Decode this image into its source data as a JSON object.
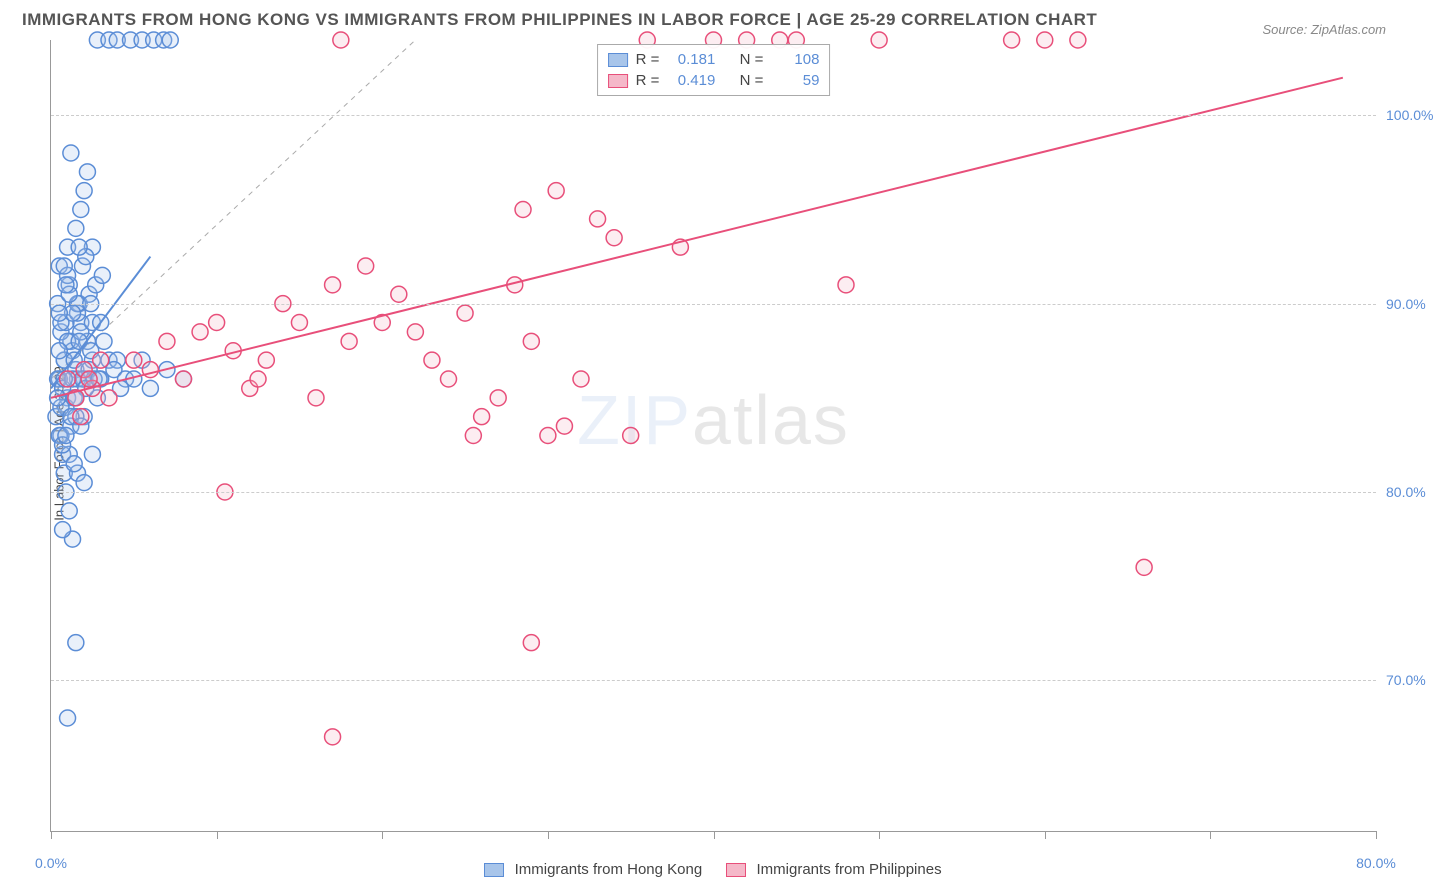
{
  "title": "IMMIGRANTS FROM HONG KONG VS IMMIGRANTS FROM PHILIPPINES IN LABOR FORCE | AGE 25-29 CORRELATION CHART",
  "source": "Source: ZipAtlas.com",
  "y_axis_label": "In Labor Force | Age 25-29",
  "watermark_a": "ZIP",
  "watermark_b": "atlas",
  "chart": {
    "type": "scatter-correlation",
    "background_color": "#ffffff",
    "grid_color": "#cccccc",
    "axis_color": "#999999",
    "text_color": "#555555",
    "value_color": "#5b8dd6",
    "title_fontsize": 17,
    "label_fontsize": 13,
    "tick_fontsize": 14,
    "xlim": [
      0,
      80
    ],
    "ylim": [
      62,
      104
    ],
    "y_ticks": [
      70,
      80,
      90,
      100
    ],
    "y_tick_labels": [
      "70.0%",
      "80.0%",
      "90.0%",
      "100.0%"
    ],
    "x_ticks": [
      0,
      10,
      20,
      30,
      40,
      50,
      60,
      70,
      80
    ],
    "x_tick_labels": [
      "0.0%",
      "",
      "",
      "",
      "",
      "",
      "",
      "",
      "80.0%"
    ],
    "marker_radius": 8,
    "marker_stroke_width": 1.5,
    "marker_fill_opacity": 0.25,
    "line_width": 2,
    "dashed_line": {
      "x1": 0,
      "y1": 86,
      "x2": 22,
      "y2": 104,
      "stroke": "#aaaaaa",
      "dash": "5,5",
      "width": 1
    }
  },
  "series": [
    {
      "name": "Immigrants from Hong Kong",
      "key": "hongkong",
      "color_stroke": "#5b8dd6",
      "color_fill": "#a8c5ea",
      "R": "0.181",
      "N": "108",
      "regression": {
        "x1": 0,
        "y1": 85.5,
        "x2": 6,
        "y2": 92.5
      },
      "points": [
        [
          0.5,
          86
        ],
        [
          0.8,
          87
        ],
        [
          1.0,
          85
        ],
        [
          1.2,
          88
        ],
        [
          0.3,
          84
        ],
        [
          1.5,
          86.5
        ],
        [
          0.6,
          83
        ],
        [
          1.8,
          89
        ],
        [
          2.0,
          86
        ],
        [
          0.4,
          90
        ],
        [
          1.1,
          91
        ],
        [
          0.7,
          82
        ],
        [
          1.3,
          87.5
        ],
        [
          2.2,
          88
        ],
        [
          0.9,
          84.5
        ],
        [
          1.6,
          86
        ],
        [
          0.5,
          92
        ],
        [
          1.0,
          93
        ],
        [
          1.4,
          85
        ],
        [
          2.5,
          87
        ],
        [
          0.8,
          81
        ],
        [
          1.2,
          83.5
        ],
        [
          3.0,
          86
        ],
        [
          0.6,
          88.5
        ],
        [
          1.7,
          90
        ],
        [
          2.0,
          84
        ],
        [
          0.4,
          86
        ],
        [
          1.1,
          82
        ],
        [
          3.5,
          87
        ],
        [
          0.9,
          89
        ],
        [
          1.5,
          84
        ],
        [
          2.3,
          86.5
        ],
        [
          0.7,
          85.5
        ],
        [
          1.8,
          88.5
        ],
        [
          4.0,
          87
        ],
        [
          0.5,
          83
        ],
        [
          1.3,
          86
        ],
        [
          2.8,
          85
        ],
        [
          0.8,
          87
        ],
        [
          1.6,
          89.5
        ],
        [
          3.2,
          88
        ],
        [
          0.6,
          84.5
        ],
        [
          1.9,
          86
        ],
        [
          2.5,
          89
        ],
        [
          0.4,
          85
        ],
        [
          1.0,
          88
        ],
        [
          3.8,
          86.5
        ],
        [
          0.7,
          82.5
        ],
        [
          1.4,
          87
        ],
        [
          2.1,
          85.5
        ],
        [
          4.5,
          86
        ],
        [
          0.9,
          83
        ],
        [
          1.7,
          88
        ],
        [
          2.6,
          86
        ],
        [
          0.5,
          87.5
        ],
        [
          1.2,
          84
        ],
        [
          3.0,
          89
        ],
        [
          0.8,
          86
        ],
        [
          1.5,
          85
        ],
        [
          2.4,
          87.5
        ],
        [
          4.2,
          85.5
        ],
        [
          0.6,
          89
        ],
        [
          1.8,
          83.5
        ],
        [
          2.9,
          86
        ],
        [
          1.3,
          77.5
        ],
        [
          0.9,
          80
        ],
        [
          1.6,
          81
        ],
        [
          2.0,
          80.5
        ],
        [
          1.1,
          79
        ],
        [
          2.5,
          82
        ],
        [
          0.7,
          78
        ],
        [
          1.4,
          81.5
        ],
        [
          1.0,
          68
        ],
        [
          2.8,
          104
        ],
        [
          3.5,
          104
        ],
        [
          4.0,
          104
        ],
        [
          4.8,
          104
        ],
        [
          5.5,
          104
        ],
        [
          6.2,
          104
        ],
        [
          6.8,
          104
        ],
        [
          7.2,
          104
        ],
        [
          1.8,
          95
        ],
        [
          2.2,
          97
        ],
        [
          1.5,
          94
        ],
        [
          2.0,
          96
        ],
        [
          2.5,
          93
        ],
        [
          1.2,
          98
        ],
        [
          1.9,
          92
        ],
        [
          1.5,
          72
        ],
        [
          1.0,
          91.5
        ],
        [
          2.3,
          90.5
        ],
        [
          0.8,
          92
        ],
        [
          1.6,
          90
        ],
        [
          2.7,
          91
        ],
        [
          1.3,
          89.5
        ],
        [
          0.5,
          89.5
        ],
        [
          1.1,
          90.5
        ],
        [
          2.1,
          92.5
        ],
        [
          0.9,
          91
        ],
        [
          1.7,
          93
        ],
        [
          2.4,
          90
        ],
        [
          3.1,
          91.5
        ],
        [
          5.0,
          86
        ],
        [
          5.5,
          87
        ],
        [
          6.0,
          85.5
        ],
        [
          7.0,
          86.5
        ],
        [
          8.0,
          86
        ]
      ]
    },
    {
      "name": "Immigrants from Philippines",
      "key": "philippines",
      "color_stroke": "#e84f7a",
      "color_fill": "#f5b8c9",
      "R": "0.419",
      "N": "59",
      "regression": {
        "x1": 0,
        "y1": 85,
        "x2": 78,
        "y2": 102
      },
      "points": [
        [
          1.0,
          86
        ],
        [
          1.5,
          85
        ],
        [
          2.0,
          86.5
        ],
        [
          2.5,
          85.5
        ],
        [
          3.0,
          87
        ],
        [
          1.8,
          84
        ],
        [
          2.3,
          86
        ],
        [
          3.5,
          85
        ],
        [
          5.0,
          87
        ],
        [
          7.0,
          88
        ],
        [
          8.0,
          86
        ],
        [
          10.0,
          89
        ],
        [
          11.0,
          87.5
        ],
        [
          12.0,
          85.5
        ],
        [
          9.0,
          88.5
        ],
        [
          6.0,
          86.5
        ],
        [
          13.0,
          87
        ],
        [
          15.0,
          89
        ],
        [
          14.0,
          90
        ],
        [
          16.0,
          85
        ],
        [
          17.0,
          91
        ],
        [
          18.0,
          88
        ],
        [
          10.5,
          80
        ],
        [
          12.5,
          86
        ],
        [
          20.0,
          89
        ],
        [
          22.0,
          88.5
        ],
        [
          21.0,
          90.5
        ],
        [
          23.0,
          87
        ],
        [
          19.0,
          92
        ],
        [
          24.0,
          86
        ],
        [
          25.0,
          89.5
        ],
        [
          26.0,
          84
        ],
        [
          28.0,
          91
        ],
        [
          27.0,
          85
        ],
        [
          30.0,
          83
        ],
        [
          29.0,
          88
        ],
        [
          31.0,
          83.5
        ],
        [
          32.0,
          86
        ],
        [
          17.5,
          104
        ],
        [
          35.0,
          83
        ],
        [
          38.0,
          93
        ],
        [
          40.0,
          104
        ],
        [
          42.0,
          104
        ],
        [
          45.0,
          104
        ],
        [
          50.0,
          104
        ],
        [
          28.5,
          95
        ],
        [
          30.5,
          96
        ],
        [
          34.0,
          93.5
        ],
        [
          36.0,
          104
        ],
        [
          25.5,
          83
        ],
        [
          33.0,
          94.5
        ],
        [
          29.0,
          72
        ],
        [
          17.0,
          67
        ],
        [
          48.0,
          91
        ],
        [
          58.0,
          104
        ],
        [
          62.0,
          104
        ],
        [
          66.0,
          76
        ],
        [
          60.0,
          104
        ],
        [
          44.0,
          104
        ]
      ]
    }
  ],
  "bottom_legend": {
    "s1_label": "Immigrants from Hong Kong",
    "s2_label": "Immigrants from Philippines"
  },
  "stats_labels": {
    "R": "R  =",
    "N": "N  ="
  }
}
